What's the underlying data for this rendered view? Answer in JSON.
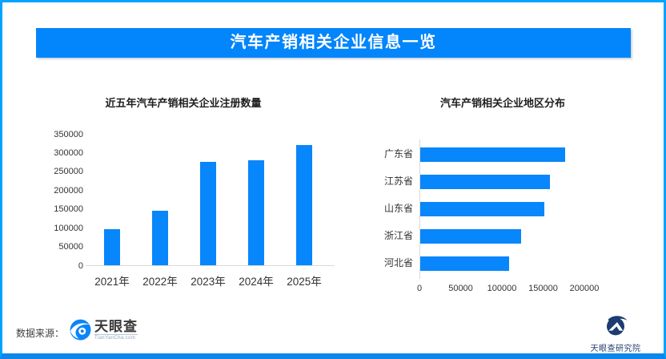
{
  "header": {
    "title": "汽车产销相关企业信息一览"
  },
  "colors": {
    "banner": "#0385fb",
    "frame_border": "#00a3ff",
    "bottom_bar": "#0b86ea",
    "bar": "#0886fb",
    "axis_line": "#d9d9d9",
    "tick_text": "#333333",
    "title_text": "#1f1f1f",
    "logo_blue": "#0b85f8",
    "institute_navy": "#1c3c72"
  },
  "chart_data": [
    {
      "type": "bar",
      "orientation": "vertical",
      "title": "近五年汽车产销相关企业注册数量",
      "categories": [
        "2021年",
        "2022年",
        "2023年",
        "2024年",
        "2025年"
      ],
      "values": [
        95000,
        146000,
        275000,
        279000,
        320000
      ],
      "ylim": [
        0,
        350000
      ],
      "ytick_step": 50000,
      "grid": false,
      "legend": "none",
      "bar_color": "#0886fb"
    },
    {
      "type": "bar",
      "orientation": "horizontal",
      "title": "汽车产销相关企业地区分布",
      "categories": [
        "广东省",
        "江苏省",
        "山东省",
        "浙江省",
        "河北省"
      ],
      "values": [
        176000,
        157000,
        150000,
        122000,
        108000
      ],
      "xlim": [
        0,
        200000
      ],
      "xtick_step": 50000,
      "grid": false,
      "legend": "none",
      "bar_color": "#0886fb"
    }
  ],
  "footer": {
    "source_label": "数据来源：",
    "tianyancha_logo": {
      "name": "天眼查",
      "subtext": "TianYanCha.com"
    },
    "institute": {
      "name": "天眼查研究院"
    }
  }
}
